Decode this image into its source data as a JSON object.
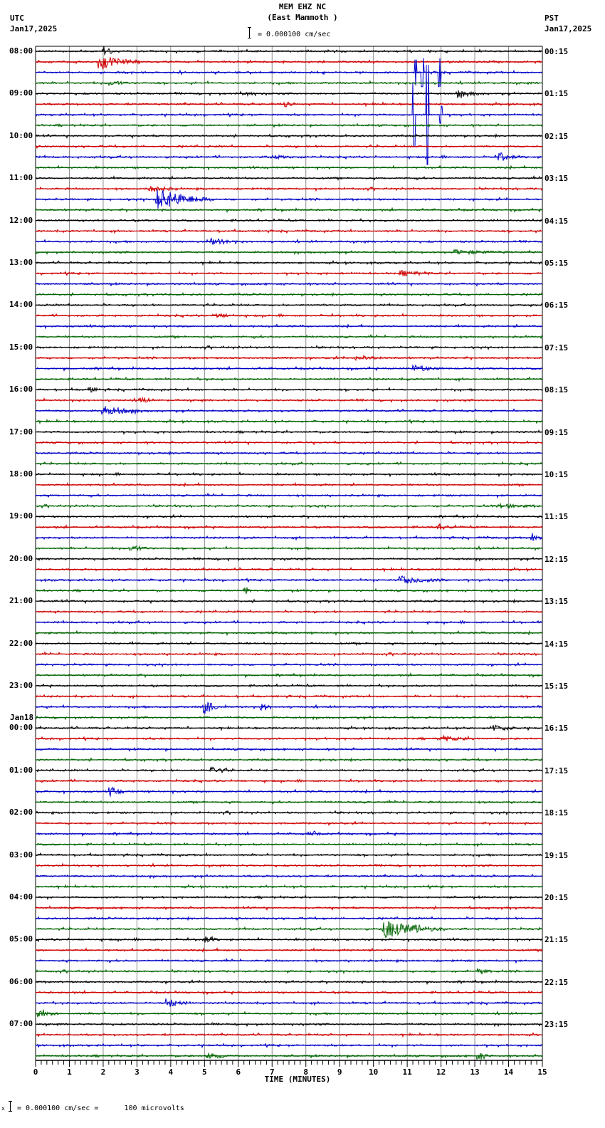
{
  "header": {
    "station": "MEM EHZ NC",
    "location": "(East Mammoth )",
    "scale_text": "= 0.000100 cm/sec",
    "left_tz": "UTC",
    "left_date": "Jan17,2025",
    "right_tz": "PST",
    "right_date": "Jan17,2025"
  },
  "footer": {
    "scale_prefix": "x",
    "scale_text": "= 0.000100 cm/sec =      100 microvolts"
  },
  "colors": {
    "trace_cycle": [
      "#000000",
      "#d00000",
      "#0000c8",
      "#006400"
    ],
    "grid": "#8c8c8c",
    "frame": "#000000"
  },
  "chart_data": {
    "type": "line",
    "title": "MEM EHZ NC (East Mammoth )",
    "subtitle": "= 0.000100 cm/sec",
    "xlabel": "TIME (MINUTES)",
    "ylabel": "",
    "xlim": [
      0,
      15
    ],
    "x_ticks": [
      "0",
      "1",
      "2",
      "3",
      "4",
      "5",
      "6",
      "7",
      "8",
      "9",
      "10",
      "11",
      "12",
      "13",
      "14",
      "15"
    ],
    "grid": true,
    "trace_minutes": 15,
    "traces_per_hour": 4,
    "left_labels": [
      {
        "row": 0,
        "text": "08:00"
      },
      {
        "row": 4,
        "text": "09:00"
      },
      {
        "row": 8,
        "text": "10:00"
      },
      {
        "row": 12,
        "text": "11:00"
      },
      {
        "row": 16,
        "text": "12:00"
      },
      {
        "row": 20,
        "text": "13:00"
      },
      {
        "row": 24,
        "text": "14:00"
      },
      {
        "row": 28,
        "text": "15:00"
      },
      {
        "row": 32,
        "text": "16:00"
      },
      {
        "row": 36,
        "text": "17:00"
      },
      {
        "row": 40,
        "text": "18:00"
      },
      {
        "row": 44,
        "text": "19:00"
      },
      {
        "row": 48,
        "text": "20:00"
      },
      {
        "row": 52,
        "text": "21:00"
      },
      {
        "row": 56,
        "text": "22:00"
      },
      {
        "row": 60,
        "text": "23:00"
      },
      {
        "row": 64,
        "text": "00:00",
        "date": "Jan18"
      },
      {
        "row": 68,
        "text": "01:00"
      },
      {
        "row": 72,
        "text": "02:00"
      },
      {
        "row": 76,
        "text": "03:00"
      },
      {
        "row": 80,
        "text": "04:00"
      },
      {
        "row": 84,
        "text": "05:00"
      },
      {
        "row": 88,
        "text": "06:00"
      },
      {
        "row": 92,
        "text": "07:00"
      }
    ],
    "right_labels": [
      {
        "row": 0,
        "text": "00:15"
      },
      {
        "row": 4,
        "text": "01:15"
      },
      {
        "row": 8,
        "text": "02:15"
      },
      {
        "row": 12,
        "text": "03:15"
      },
      {
        "row": 16,
        "text": "04:15"
      },
      {
        "row": 20,
        "text": "05:15"
      },
      {
        "row": 24,
        "text": "06:15"
      },
      {
        "row": 28,
        "text": "07:15"
      },
      {
        "row": 32,
        "text": "08:15"
      },
      {
        "row": 36,
        "text": "09:15"
      },
      {
        "row": 40,
        "text": "10:15"
      },
      {
        "row": 44,
        "text": "11:15"
      },
      {
        "row": 48,
        "text": "12:15"
      },
      {
        "row": 52,
        "text": "13:15"
      },
      {
        "row": 56,
        "text": "14:15"
      },
      {
        "row": 60,
        "text": "15:15"
      },
      {
        "row": 64,
        "text": "16:15"
      },
      {
        "row": 68,
        "text": "17:15"
      },
      {
        "row": 72,
        "text": "18:15"
      },
      {
        "row": 76,
        "text": "19:15"
      },
      {
        "row": 80,
        "text": "20:15"
      },
      {
        "row": 84,
        "text": "21:15"
      },
      {
        "row": 88,
        "text": "22:15"
      },
      {
        "row": 92,
        "text": "23:15"
      }
    ],
    "rows": 96,
    "events": [
      {
        "row": 0,
        "minute": 2.0,
        "amp": 6,
        "dur": 0.3
      },
      {
        "row": 1,
        "minute": 1.9,
        "amp": 9,
        "dur": 1.2
      },
      {
        "row": 3,
        "minute": 2.2,
        "amp": 3,
        "dur": 0.6
      },
      {
        "row": 2,
        "minute": 11.25,
        "amp": 18,
        "dur": 0.05,
        "spike": true
      },
      {
        "row": 2,
        "minute": 11.45,
        "amp": 20,
        "dur": 0.05,
        "spike": true
      },
      {
        "row": 2,
        "minute": 11.95,
        "amp": 20,
        "dur": 0.05,
        "spike": true
      },
      {
        "row": 4,
        "minute": 6.1,
        "amp": 3,
        "dur": 0.6
      },
      {
        "row": 4,
        "minute": 12.5,
        "amp": 4,
        "dur": 0.8
      },
      {
        "row": 5,
        "minute": 7.4,
        "amp": 3,
        "dur": 0.2
      },
      {
        "row": 6,
        "minute": 11.2,
        "amp": 45,
        "dur": 0.05,
        "spike": true
      },
      {
        "row": 6,
        "minute": 11.6,
        "amp": 70,
        "dur": 0.05,
        "spike": true
      },
      {
        "row": 6,
        "minute": 12.0,
        "amp": 12,
        "dur": 0.15,
        "spike": true
      },
      {
        "row": 10,
        "minute": 13.7,
        "amp": 6,
        "dur": 0.6
      },
      {
        "row": 10,
        "minute": 7.0,
        "amp": 2,
        "dur": 1.0
      },
      {
        "row": 13,
        "minute": 3.4,
        "amp": 4,
        "dur": 0.8
      },
      {
        "row": 14,
        "minute": 3.6,
        "amp": 14,
        "dur": 1.6
      },
      {
        "row": 18,
        "minute": 5.2,
        "amp": 4,
        "dur": 0.8
      },
      {
        "row": 19,
        "minute": 12.4,
        "amp": 3,
        "dur": 1.6
      },
      {
        "row": 21,
        "minute": 10.8,
        "amp": 3,
        "dur": 1.0
      },
      {
        "row": 25,
        "minute": 5.3,
        "amp": 3,
        "dur": 0.8
      },
      {
        "row": 29,
        "minute": 9.5,
        "amp": 3,
        "dur": 1.0
      },
      {
        "row": 30,
        "minute": 11.2,
        "amp": 4,
        "dur": 0.8
      },
      {
        "row": 32,
        "minute": 1.6,
        "amp": 3,
        "dur": 0.3
      },
      {
        "row": 33,
        "minute": 3.1,
        "amp": 4,
        "dur": 0.3
      },
      {
        "row": 34,
        "minute": 2.0,
        "amp": 6,
        "dur": 1.2
      },
      {
        "row": 43,
        "minute": 13.8,
        "amp": 3,
        "dur": 1.0
      },
      {
        "row": 45,
        "minute": 11.9,
        "amp": 3,
        "dur": 0.6
      },
      {
        "row": 46,
        "minute": 14.7,
        "amp": 4,
        "dur": 0.3
      },
      {
        "row": 47,
        "minute": 2.8,
        "amp": 4,
        "dur": 0.6
      },
      {
        "row": 50,
        "minute": 10.8,
        "amp": 5,
        "dur": 1.4
      },
      {
        "row": 51,
        "minute": 6.2,
        "amp": 4,
        "dur": 0.2
      },
      {
        "row": 62,
        "minute": 5.0,
        "amp": 10,
        "dur": 0.4
      },
      {
        "row": 62,
        "minute": 6.7,
        "amp": 4,
        "dur": 0.3
      },
      {
        "row": 64,
        "minute": 13.5,
        "amp": 4,
        "dur": 0.8
      },
      {
        "row": 65,
        "minute": 12.0,
        "amp": 3,
        "dur": 1.2
      },
      {
        "row": 68,
        "minute": 5.2,
        "amp": 4,
        "dur": 0.6
      },
      {
        "row": 70,
        "minute": 2.2,
        "amp": 5,
        "dur": 0.4
      },
      {
        "row": 74,
        "minute": 8.1,
        "amp": 3,
        "dur": 0.3
      },
      {
        "row": 83,
        "minute": 10.3,
        "amp": 12,
        "dur": 1.8
      },
      {
        "row": 84,
        "minute": 5.0,
        "amp": 4,
        "dur": 0.4
      },
      {
        "row": 87,
        "minute": 13.1,
        "amp": 4,
        "dur": 0.4
      },
      {
        "row": 90,
        "minute": 3.9,
        "amp": 5,
        "dur": 0.6
      },
      {
        "row": 91,
        "minute": 0.1,
        "amp": 4,
        "dur": 0.6
      },
      {
        "row": 95,
        "minute": 5.1,
        "amp": 4,
        "dur": 0.6
      },
      {
        "row": 95,
        "minute": 13.1,
        "amp": 4,
        "dur": 0.4
      }
    ]
  }
}
